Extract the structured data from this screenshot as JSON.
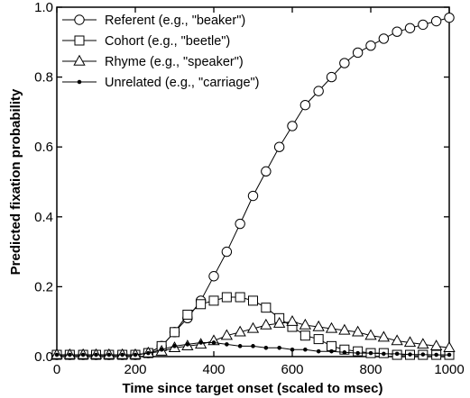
{
  "chart_data": {
    "type": "line",
    "xlabel": "Time since target onset (scaled to msec)",
    "ylabel": "Predicted fixation probability",
    "xlim": [
      0,
      1000
    ],
    "ylim": [
      0,
      1.0
    ],
    "x_ticks": [
      0,
      200,
      400,
      600,
      800,
      1000
    ],
    "y_ticks": [
      0.0,
      0.2,
      0.4,
      0.6,
      0.8,
      1.0
    ],
    "y_tick_labels": [
      "0.0",
      "0.2",
      "0.4",
      "0.6",
      "0.8",
      "1.0"
    ],
    "grid": false,
    "legend_position": "top-left",
    "x": [
      0,
      33,
      67,
      100,
      133,
      167,
      200,
      233,
      267,
      300,
      333,
      367,
      400,
      433,
      467,
      500,
      533,
      567,
      600,
      633,
      667,
      700,
      733,
      767,
      800,
      833,
      867,
      900,
      933,
      967,
      1000
    ],
    "series": [
      {
        "name": "Referent (e.g., \"beaker\")",
        "marker": "circle",
        "values": [
          0.005,
          0.005,
          0.005,
          0.005,
          0.005,
          0.005,
          0.005,
          0.01,
          0.03,
          0.07,
          0.11,
          0.16,
          0.23,
          0.3,
          0.38,
          0.46,
          0.53,
          0.6,
          0.66,
          0.72,
          0.76,
          0.8,
          0.84,
          0.87,
          0.89,
          0.91,
          0.93,
          0.94,
          0.95,
          0.96,
          0.97
        ]
      },
      {
        "name": "Cohort (e.g., \"beetle\")",
        "marker": "square",
        "values": [
          0.005,
          0.005,
          0.005,
          0.005,
          0.005,
          0.005,
          0.005,
          0.01,
          0.03,
          0.07,
          0.12,
          0.15,
          0.16,
          0.17,
          0.17,
          0.16,
          0.14,
          0.11,
          0.085,
          0.06,
          0.05,
          0.03,
          0.02,
          0.015,
          0.01,
          0.01,
          0.005,
          0.005,
          0.005,
          0.005,
          0.005
        ]
      },
      {
        "name": "Rhyme (e.g., \"speaker\")",
        "marker": "triangle",
        "values": [
          0.005,
          0.005,
          0.005,
          0.005,
          0.005,
          0.005,
          0.005,
          0.01,
          0.015,
          0.025,
          0.03,
          0.035,
          0.045,
          0.06,
          0.07,
          0.08,
          0.09,
          0.095,
          0.1,
          0.09,
          0.085,
          0.08,
          0.075,
          0.07,
          0.06,
          0.055,
          0.045,
          0.04,
          0.035,
          0.03,
          0.025
        ]
      },
      {
        "name": "Unrelated (e.g., \"carriage\")",
        "marker": "dot",
        "values": [
          0.005,
          0.005,
          0.005,
          0.005,
          0.005,
          0.005,
          0.005,
          0.01,
          0.02,
          0.03,
          0.035,
          0.04,
          0.04,
          0.035,
          0.03,
          0.03,
          0.025,
          0.025,
          0.02,
          0.02,
          0.015,
          0.015,
          0.012,
          0.01,
          0.01,
          0.008,
          0.008,
          0.006,
          0.006,
          0.005,
          0.005
        ]
      }
    ]
  }
}
